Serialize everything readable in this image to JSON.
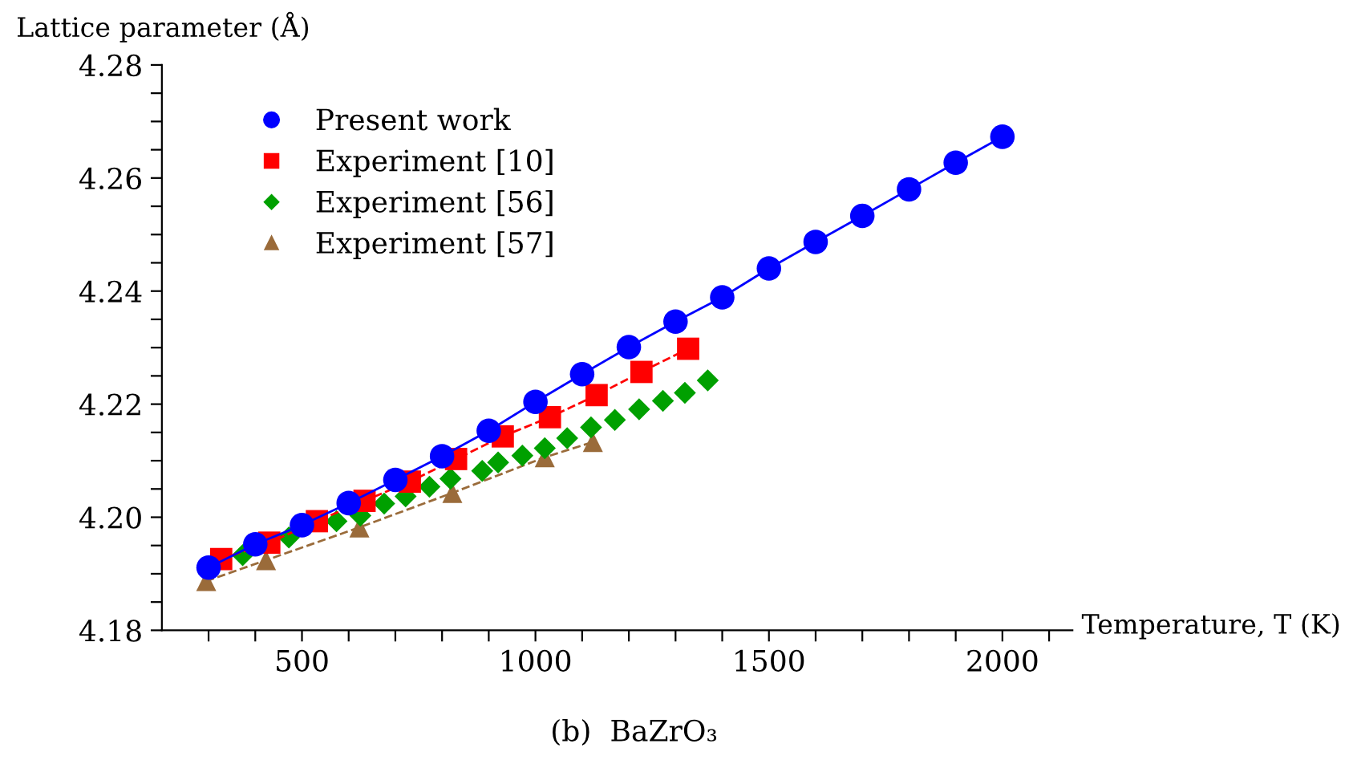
{
  "chart_data": {
    "type": "line",
    "xlabel": "Temperature, T (K)",
    "ylabel": "Lattice parameter (Å)",
    "annotations": [
      "(b)  BaZrO₃"
    ],
    "xlim": [
      200,
      2150
    ],
    "ylim": [
      4.18,
      4.28
    ],
    "xticks": [
      {
        "value": 300,
        "label": null
      },
      {
        "value": 400,
        "label": null
      },
      500,
      {
        "value": 600,
        "label": null
      },
      {
        "value": 700,
        "label": null
      },
      {
        "value": 800,
        "label": null
      },
      {
        "value": 900,
        "label": null
      },
      1000,
      {
        "value": 1100,
        "label": null
      },
      {
        "value": 1200,
        "label": null
      },
      {
        "value": 1300,
        "label": null
      },
      {
        "value": 1400,
        "label": null
      },
      1500,
      {
        "value": 1600,
        "label": null
      },
      {
        "value": 1700,
        "label": null
      },
      {
        "value": 1800,
        "label": null
      },
      {
        "value": 1900,
        "label": null
      },
      2000,
      {
        "value": 2100,
        "label": null
      }
    ],
    "yticks": [
      4.18,
      {
        "value": 4.185,
        "label": null
      },
      {
        "value": 4.19,
        "label": null
      },
      {
        "value": 4.195,
        "label": null
      },
      {
        "value": 4.2,
        "label": "4.20"
      },
      {
        "value": 4.205,
        "label": null
      },
      {
        "value": 4.21,
        "label": null
      },
      {
        "value": 4.215,
        "label": null
      },
      4.22,
      {
        "value": 4.225,
        "label": null
      },
      {
        "value": 4.23,
        "label": null
      },
      {
        "value": 4.235,
        "label": null
      },
      4.24,
      {
        "value": 4.245,
        "label": null
      },
      {
        "value": 4.25,
        "label": null
      },
      {
        "value": 4.255,
        "label": null
      },
      4.26,
      {
        "value": 4.265,
        "label": null
      },
      {
        "value": 4.27,
        "label": null
      },
      {
        "value": 4.275,
        "label": null
      },
      4.28
    ],
    "grid": false,
    "legend": "top left",
    "series": [
      {
        "name": "Present work",
        "marker": "circle",
        "line_style": "solid",
        "color": "#0000ff",
        "x": [
          300,
          400,
          500,
          600,
          700,
          800,
          900,
          1000,
          1100,
          1200,
          1300,
          1400,
          1500,
          1600,
          1700,
          1800,
          1900,
          2000
        ],
        "values": [
          4.1911,
          4.1952,
          4.1986,
          4.2025,
          4.2066,
          4.2108,
          4.2153,
          4.2204,
          4.2253,
          4.2301,
          4.2346,
          4.2389,
          4.244,
          4.2487,
          4.2533,
          4.258,
          4.2627,
          4.2673
        ]
      },
      {
        "name": "Experiment [10]",
        "marker": "square",
        "line_style": "dashed",
        "color": "#ff0000",
        "x": [
          327,
          430,
          532,
          634,
          731,
          830,
          930,
          1031,
          1131,
          1227,
          1327
        ],
        "values": [
          4.1926,
          4.1955,
          4.1993,
          4.2029,
          4.2063,
          4.2103,
          4.2143,
          4.2177,
          4.2216,
          4.2257,
          4.2298
        ]
      },
      {
        "name": "Experiment [56]",
        "type": "scatter",
        "marker": "diamond",
        "color": "#00a000",
        "x": [
          373,
          472,
          574,
          625,
          676,
          722,
          773,
          818,
          886,
          920,
          972,
          1020,
          1068,
          1119,
          1170,
          1222,
          1273,
          1320,
          1369
        ],
        "values": [
          4.1933,
          4.1964,
          4.1993,
          4.2003,
          4.2024,
          4.2037,
          4.2054,
          4.2068,
          4.2082,
          4.2097,
          4.2109,
          4.2122,
          4.214,
          4.2159,
          4.2172,
          4.2191,
          4.2206,
          4.222,
          4.2242
        ]
      },
      {
        "name": "Experiment [57]",
        "marker": "triangle",
        "line_style": "dashed",
        "color": "#9a6b3a",
        "x": [
          295,
          423,
          623,
          822,
          1020,
          1123
        ],
        "values": [
          4.1887,
          4.1924,
          4.1982,
          4.2043,
          4.2106,
          4.2133
        ]
      }
    ]
  }
}
